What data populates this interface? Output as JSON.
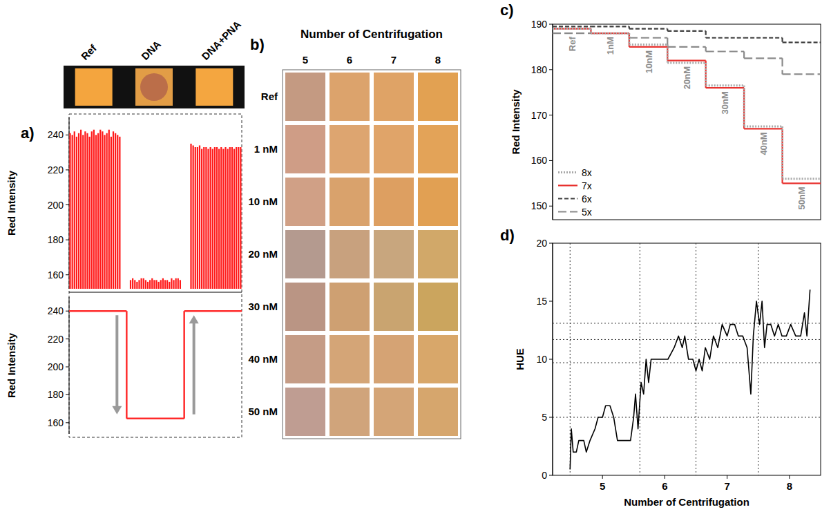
{
  "chart_data": [
    {
      "type": "swatch",
      "panel": "a)",
      "categories": [
        "Ref",
        "DNA",
        "DNA+PNA"
      ],
      "colors": [
        "#f4a53e",
        "#e29d46",
        "#f4a640"
      ],
      "spot_colors": [
        null,
        "#b4664a",
        null
      ]
    },
    {
      "type": "bar",
      "y_label": "Red Intensity",
      "color": "#ff1a1a",
      "tick_labels": "y",
      "categories": [
        null,
        null,
        null,
        null,
        null,
        null,
        null,
        null,
        null,
        null,
        null,
        null,
        null,
        null,
        null,
        null,
        null,
        null,
        null,
        null,
        null,
        null,
        null,
        null,
        null,
        null,
        null,
        null,
        null,
        null,
        null,
        null,
        null,
        null,
        null,
        null,
        null,
        null,
        null,
        null,
        null,
        null,
        null,
        null,
        null,
        null,
        null,
        null,
        null,
        null,
        null,
        null,
        null,
        null,
        null,
        null,
        null,
        null,
        null,
        null,
        null,
        null,
        null,
        null,
        null,
        null,
        null,
        null,
        null,
        null,
        null,
        null,
        null,
        null,
        null,
        null,
        null,
        null,
        null,
        null
      ],
      "values": [
        241,
        240,
        242,
        239,
        241,
        243,
        240,
        242,
        241,
        239,
        242,
        243,
        240,
        241,
        243,
        242,
        240,
        241,
        243,
        239,
        242,
        241,
        240,
        239,
        null,
        null,
        null,
        null,
        157,
        158,
        157,
        156,
        157,
        158,
        158,
        157,
        156,
        157,
        158,
        157,
        157,
        156,
        157,
        158,
        157,
        157,
        156,
        158,
        157,
        158,
        158,
        157,
        null,
        null,
        null,
        null,
        235,
        234,
        233,
        233,
        234,
        232,
        233,
        233,
        232,
        233,
        232,
        233,
        233,
        232,
        233,
        232,
        233,
        232,
        233,
        233,
        232,
        233,
        233,
        233
      ],
      "ylim": [
        152,
        250
      ],
      "yticks": [
        160,
        180,
        200,
        220,
        240
      ]
    },
    {
      "type": "line",
      "line_style": "step",
      "y_label": "Red Intensity",
      "color": "#ff2a2a",
      "tick_labels": "y",
      "categories": [
        null,
        null,
        null
      ],
      "values": [
        240,
        163,
        240
      ],
      "ylim": [
        152,
        250
      ],
      "yticks": [
        160,
        180,
        200,
        220,
        240
      ]
    },
    {
      "type": "swatch_grid",
      "panel": "b)",
      "title": "Number of Centrifugation",
      "categories": [
        "5",
        "6",
        "7",
        "8"
      ],
      "rows": [
        "Ref",
        "1 nM",
        "10 nM",
        "20 nM",
        "30 nM",
        "40 nM",
        "50 nM"
      ],
      "colors": [
        [
          "#c49a82",
          "#dca36c",
          "#dfa366",
          "#e2a152"
        ],
        [
          "#cf9d86",
          "#dda570",
          "#e0a469",
          "#e3a358"
        ],
        [
          "#d0a086",
          "#d9a26c",
          "#dd9f61",
          "#e1a053"
        ],
        [
          "#b49a8f",
          "#c8a17e",
          "#c8a67e",
          "#d1a869"
        ],
        [
          "#ba9584",
          "#cea072",
          "#c9a470",
          "#cba55e"
        ],
        [
          "#c59c86",
          "#d4a577",
          "#d5a374",
          "#d8a76a"
        ],
        [
          "#bf9d92",
          "#d0a47b",
          "#d4a577",
          "#d6a66d"
        ]
      ]
    },
    {
      "type": "line",
      "line_style": "step",
      "panel": "c)",
      "y_label": "Red Intensity",
      "legend": "lower left",
      "tick_labels": "y",
      "categories": [
        "Ref",
        "1nM",
        "10nM",
        "20nM",
        "30nM",
        "40nM",
        "50nM"
      ],
      "series": [
        {
          "name": "8x",
          "color": "#a8a8a8",
          "line_style": "dotted",
          "values": [
            189,
            188,
            185.5,
            181.5,
            176.5,
            167.5,
            156
          ]
        },
        {
          "name": "7x",
          "color": "#e8322f",
          "line_style": "solid",
          "values": [
            189,
            188,
            185,
            182,
            176,
            167,
            155
          ]
        },
        {
          "name": "6x",
          "color": "#404040",
          "line_style": "dashed",
          "values": [
            189.5,
            189.5,
            189,
            188.5,
            187,
            187,
            186
          ]
        },
        {
          "name": "5x",
          "color": "#8a8a8a",
          "line_style": "longdash",
          "values": [
            188,
            188,
            187,
            185,
            184,
            182.5,
            179
          ]
        }
      ],
      "ylim": [
        147,
        190
      ],
      "yticks": [
        150,
        160,
        170,
        180,
        190
      ]
    },
    {
      "type": "line",
      "panel": "d)",
      "x_label": "Number of Centrifugation",
      "y_label": "HUE",
      "color": "#000000",
      "x": [
        4.48,
        4.5,
        4.53,
        4.58,
        4.62,
        4.7,
        4.74,
        4.8,
        4.88,
        4.93,
        5.0,
        5.05,
        5.12,
        5.18,
        5.24,
        5.3,
        5.38,
        5.45,
        5.5,
        5.53,
        5.57,
        5.62,
        5.66,
        5.7,
        5.74,
        5.78,
        5.85,
        5.95,
        6.05,
        6.15,
        6.22,
        6.28,
        6.32,
        6.38,
        6.45,
        6.5,
        6.55,
        6.6,
        6.65,
        6.72,
        6.78,
        6.85,
        6.92,
        7.0,
        7.05,
        7.12,
        7.18,
        7.25,
        7.32,
        7.38,
        7.42,
        7.47,
        7.52,
        7.56,
        7.6,
        7.64,
        7.7,
        7.76,
        7.82,
        7.88,
        7.95,
        8.02,
        8.1,
        8.18,
        8.24,
        8.28,
        8.33
      ],
      "values": [
        0.5,
        4,
        2,
        2,
        3,
        3,
        2,
        3,
        4,
        5,
        5,
        6,
        6,
        5,
        3,
        3,
        3,
        3,
        5,
        7,
        4,
        8,
        7,
        10,
        8,
        10,
        10,
        10,
        10,
        11,
        12,
        11,
        12,
        10,
        10,
        9,
        10,
        9,
        11,
        10,
        12,
        11,
        13,
        12,
        13,
        13,
        12,
        12,
        11,
        7,
        12,
        15,
        13,
        15,
        11,
        13,
        13,
        12,
        13,
        12,
        12,
        13,
        12,
        12,
        14,
        12,
        16
      ],
      "xlim": [
        4.2,
        8.5
      ],
      "xticks": [
        5,
        6,
        7,
        8
      ],
      "ylim": [
        0,
        20
      ],
      "yticks": [
        0,
        5,
        10,
        15,
        20
      ],
      "ref_lines": [
        5,
        9.7,
        11.7,
        13.1
      ],
      "boundaries": [
        4.48,
        5.6,
        6.5,
        7.5
      ]
    }
  ]
}
